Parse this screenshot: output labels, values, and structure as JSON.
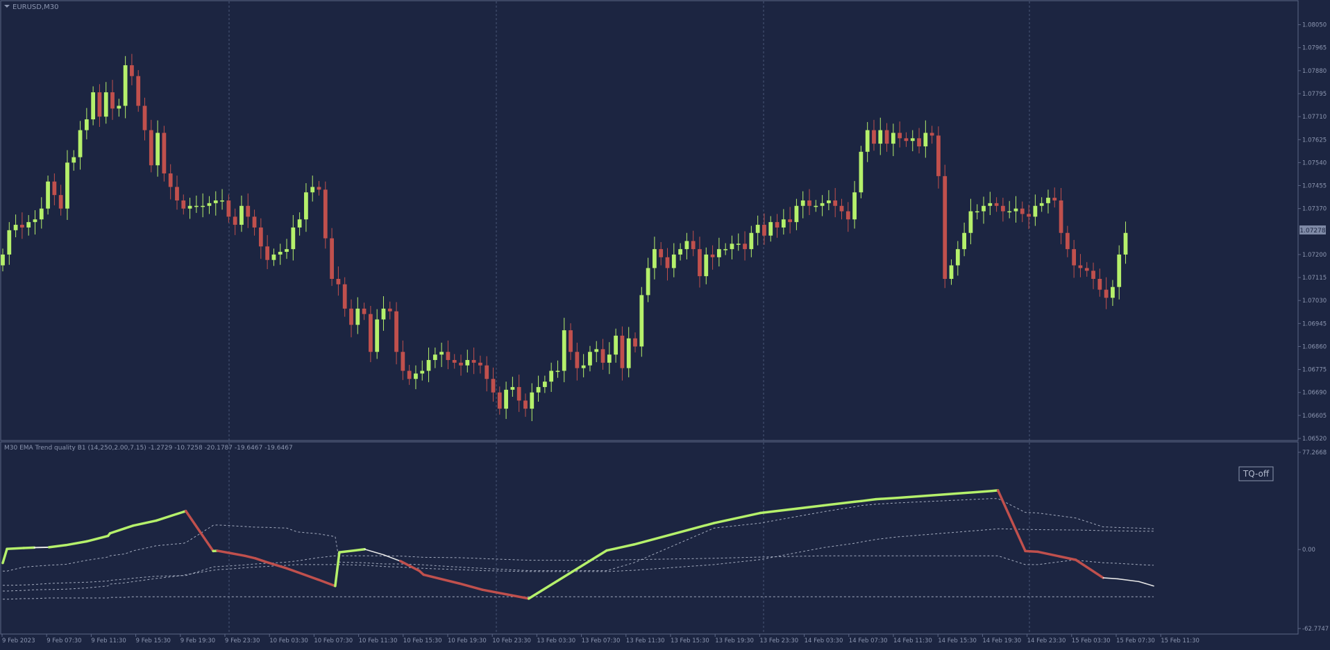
{
  "window": {
    "title": "EURUSD,M30"
  },
  "indicator": {
    "header": "M30 EMA Trend quality B1 (14,250,2.00,7.15) -1.2729 -10.7258 -20.1787 -19.6467 -19.6467",
    "button_label": "TQ-off",
    "scale_labels": [
      "77.2668",
      "0.00",
      "-62.7747"
    ]
  },
  "price_axis": {
    "labels": [
      "1.08050",
      "1.07965",
      "1.07880",
      "1.07795",
      "1.07710",
      "1.07625",
      "1.07540",
      "1.07455",
      "1.07370",
      "1.07200",
      "1.07115",
      "1.07030",
      "1.06945",
      "1.06860",
      "1.06775",
      "1.06690",
      "1.06605",
      "1.06520"
    ],
    "current_price": "1.07278"
  },
  "time_axis": {
    "labels": [
      "9 Feb 2023",
      "9 Feb 07:30",
      "9 Feb 11:30",
      "9 Feb 15:30",
      "9 Feb 19:30",
      "9 Feb 23:30",
      "10 Feb 03:30",
      "10 Feb 07:30",
      "10 Feb 11:30",
      "10 Feb 15:30",
      "10 Feb 19:30",
      "10 Feb 23:30",
      "13 Feb 03:30",
      "13 Feb 07:30",
      "13 Feb 11:30",
      "13 Feb 15:30",
      "13 Feb 19:30",
      "13 Feb 23:30",
      "14 Feb 03:30",
      "14 Feb 07:30",
      "14 Feb 11:30",
      "14 Feb 15:30",
      "14 Feb 19:30",
      "14 Feb 23:30",
      "15 Feb 03:30",
      "15 Feb 07:30",
      "15 Feb 11:30"
    ]
  },
  "colors": {
    "background": "#1c2541",
    "bull": "#b5f06b",
    "bear": "#c0504d",
    "trend_neutral": "#e6e6e6",
    "grid": "#4a5677",
    "axis_text": "#8c96b0",
    "price_badge": "#7f8aa6"
  },
  "chart_data": [
    {
      "type": "candlestick",
      "symbol": "EURUSD",
      "timeframe": "M30",
      "ylim": [
        1.0652,
        1.0809
      ],
      "close_series_approx": [
        1.072,
        1.0729,
        1.0731,
        1.073,
        1.0732,
        1.0733,
        1.0737,
        1.0747,
        1.0742,
        1.0737,
        1.0754,
        1.0756,
        1.0766,
        1.077,
        1.078,
        1.0771,
        1.078,
        1.0774,
        1.0775,
        1.079,
        1.0786,
        1.0775,
        1.0766,
        1.0753,
        1.0765,
        1.075,
        1.0745,
        1.074,
        1.0737,
        1.0738,
        1.0738,
        1.0738,
        1.0739,
        1.074,
        1.074,
        1.0734,
        1.0731,
        1.0738,
        1.0734,
        1.073,
        1.0723,
        1.0718,
        1.072,
        1.0721,
        1.0722,
        1.073,
        1.0733,
        1.0743,
        1.0745,
        1.0744,
        1.0726,
        1.0711,
        1.0709,
        1.07,
        1.0694,
        1.07,
        1.0698,
        1.0684,
        1.0696,
        1.07,
        1.0699,
        1.0684,
        1.0677,
        1.0674,
        1.0676,
        1.0677,
        1.0681,
        1.0683,
        1.0684,
        1.0681,
        1.068,
        1.0679,
        1.0681,
        1.068,
        1.0679,
        1.0674,
        1.0669,
        1.0663,
        1.067,
        1.0671,
        1.0666,
        1.0663,
        1.0669,
        1.0671,
        1.0673,
        1.0677,
        1.0677,
        1.0692,
        1.0684,
        1.0678,
        1.0679,
        1.0684,
        1.0685,
        1.068,
        1.0683,
        1.069,
        1.0678,
        1.0689,
        1.0686,
        1.0705,
        1.0715,
        1.0722,
        1.0719,
        1.0715,
        1.072,
        1.0722,
        1.0725,
        1.0722,
        1.0712,
        1.072,
        1.0719,
        1.0722,
        1.0722,
        1.0724,
        1.0724,
        1.0722,
        1.0728,
        1.0731,
        1.0727,
        1.0732,
        1.073,
        1.0733,
        1.0732,
        1.0738,
        1.074,
        1.0738,
        1.0738,
        1.0739,
        1.074,
        1.0738,
        1.0736,
        1.0733,
        1.0743,
        1.0758,
        1.0766,
        1.0761,
        1.0766,
        1.0761,
        1.0765,
        1.0763,
        1.0762,
        1.0763,
        1.076,
        1.0765,
        1.0764,
        1.0749,
        1.0711,
        1.0716,
        1.0722,
        1.0728,
        1.0736,
        1.0736,
        1.0738,
        1.0739,
        1.0738,
        1.0736,
        1.0736,
        1.0737,
        1.0735,
        1.0734,
        1.0738,
        1.0739,
        1.0741,
        1.074,
        1.0728,
        1.0722,
        1.0716,
        1.0715,
        1.0714,
        1.0711,
        1.0707,
        1.0704,
        1.0708,
        1.072,
        1.0728
      ]
    },
    {
      "type": "line",
      "title": "M30 EMA Trend quality B1 (14,250,2.00,7.15)",
      "ylim": [
        -62.7747,
        77.2668
      ],
      "x_index": [
        0,
        2,
        10,
        15,
        22,
        30,
        40,
        50,
        51,
        58,
        62,
        73,
        86,
        87,
        100,
        102,
        108,
        115,
        120,
        125,
        135,
        140,
        150,
        158,
        160,
        172,
        181,
        189,
        198,
        200,
        217,
        228,
        250,
        287,
        300,
        338,
        360,
        390,
        405,
        408,
        415,
        425,
        470,
        473,
        486,
        492,
        508,
        510,
        523,
        530,
        540,
        547
      ],
      "series": [
        {
          "values": [
            -10.7,
            0.5,
            1.2,
            1.5,
            1.8,
            3.5,
            6.5,
            10.8,
            12.9,
            16.8,
            19.0,
            23.0,
            30.0,
            30.6,
            -1.2,
            -1.0,
            -2.8,
            -5.0,
            -7.0,
            -9.8,
            -15.0,
            -18.0,
            -24.0,
            -29.0,
            -2.2,
            0.2,
            -4.2,
            -9.2,
            -17.0,
            -20.0,
            -27.0,
            -32.0,
            -39.0,
            -0.8,
            4.0,
            21.0,
            29.0,
            35.0,
            38.0,
            38.5,
            40.0,
            41.0,
            46.5,
            47.0,
            -1.2,
            -1.8,
            -7.5,
            -8.2,
            -22.5,
            -23.3,
            -25.5,
            -29.0
          ]
        },
        {
          "values": [
            -17.1,
            -17.1,
            -14.0,
            -13.3,
            -12.5,
            -11.8,
            -8.5,
            -6.0,
            -5.0,
            -3.5,
            -1.0,
            3.0,
            5.0,
            5.5,
            19.2,
            19.5,
            19.0,
            18.3,
            17.8,
            17.6,
            17.0,
            14.0,
            12.5,
            10.2,
            -10.0,
            -10.5,
            -11.5,
            -11.5,
            -12.0,
            -12.2,
            -14.0,
            -15.0,
            -16.8,
            -16.8,
            -10.5,
            17.0,
            21.0,
            30.0,
            34.0,
            35.0,
            36.0,
            37.0,
            40.5,
            40.5,
            29.5,
            29.0,
            25.5,
            25.0,
            18.0,
            17.5,
            17.0,
            16.5
          ]
        },
        {
          "values": [
            -28.5,
            -28.5,
            -28.2,
            -27.8,
            -27.0,
            -26.5,
            -26.0,
            -25.0,
            -24.5,
            -23.5,
            -22.8,
            -21.2,
            -20.7,
            -20.7,
            -13.8,
            -13.6,
            -13.0,
            -12.2,
            -11.5,
            -11.0,
            -10.0,
            -9.0,
            -6.5,
            -5.0,
            -5.0,
            -5.0,
            -5.0,
            -5.2,
            -6.0,
            -6.2,
            -6.5,
            -7.2,
            -8.5,
            -8.5,
            -8.0,
            -7.0,
            -6.0,
            -5.0,
            -5.0,
            -5.0,
            -5.0,
            -5.0,
            -5.0,
            -5.0,
            -12.0,
            -12.0,
            -8.5,
            -8.5,
            -10.5,
            -11.0,
            -12.0,
            -12.5
          ]
        },
        {
          "values": [
            -33.0,
            -33.0,
            -32.5,
            -32.0,
            -31.8,
            -31.5,
            -30.5,
            -29.0,
            -27.5,
            -26.5,
            -25.5,
            -23.0,
            -20.5,
            -20.0,
            -16.5,
            -16.0,
            -15.5,
            -14.5,
            -14.0,
            -13.5,
            -12.5,
            -12.0,
            -12.0,
            -12.0,
            -12.0,
            -12.5,
            -13.5,
            -14.0,
            -14.8,
            -15.0,
            -16.0,
            -16.8,
            -17.5,
            -17.5,
            -16.5,
            -12.0,
            -8.0,
            1.5,
            5.0,
            6.0,
            8.0,
            10.0,
            16.0,
            16.5,
            16.0,
            15.8,
            15.5,
            15.5,
            15.0,
            14.8,
            14.6,
            14.5
          ]
        },
        {
          "values": [
            -39.5,
            -39.5,
            -39.0,
            -39.0,
            -38.5,
            -38.5,
            -38.5,
            -38.5,
            -38.0,
            -38.0,
            -37.5,
            -37.5,
            -37.5,
            -37.5,
            -37.5,
            -37.5,
            -37.5,
            -37.5,
            -37.5,
            -37.5,
            -37.5,
            -37.5,
            -37.5,
            -37.5,
            -37.5,
            -37.5,
            -37.5,
            -37.5,
            -37.5,
            -37.5,
            -37.5,
            -37.5,
            -37.5,
            -37.5,
            -37.5,
            -37.5,
            -37.5,
            -37.5,
            -37.5,
            -37.5,
            -37.5,
            -37.5,
            -37.5,
            -37.5,
            -37.5,
            -37.5,
            -37.5,
            -37.5,
            -37.5,
            -37.5,
            -37.5,
            -37.5
          ]
        }
      ]
    }
  ]
}
